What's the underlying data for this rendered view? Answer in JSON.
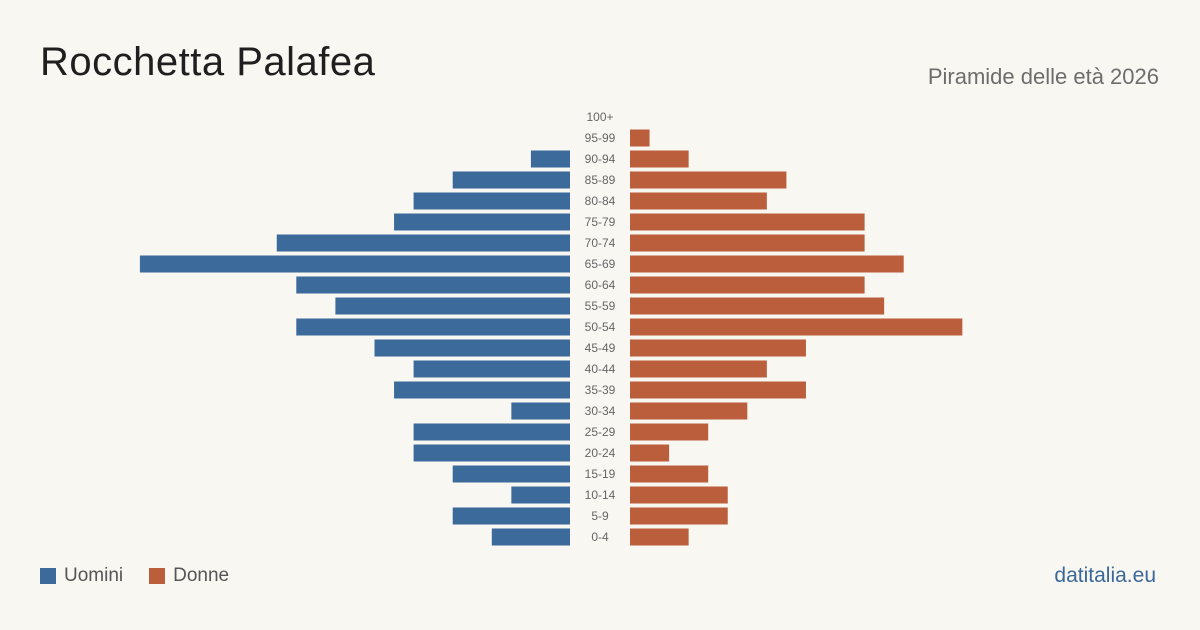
{
  "title": "Rocchetta Palafea",
  "subtitle": "Piramide delle età 2026",
  "source": "datitalia.eu",
  "colors": {
    "men": "#3c6a9b",
    "women": "#ba5e3c",
    "background": "#f9f7f2"
  },
  "legend": {
    "men_label": "Uomini",
    "women_label": "Donne"
  },
  "chart_data": {
    "type": "bar",
    "orientation": "horizontal-population-pyramid",
    "categories": [
      "100+",
      "95-99",
      "90-94",
      "85-89",
      "80-84",
      "75-79",
      "70-74",
      "65-69",
      "60-64",
      "55-59",
      "50-54",
      "45-49",
      "40-44",
      "35-39",
      "30-34",
      "25-29",
      "20-24",
      "15-19",
      "10-14",
      "5-9",
      "0-4"
    ],
    "series": [
      {
        "name": "Uomini",
        "values": [
          0,
          0,
          2,
          6,
          8,
          9,
          15,
          22,
          14,
          12,
          14,
          10,
          8,
          9,
          3,
          8,
          8,
          6,
          3,
          6,
          4
        ]
      },
      {
        "name": "Donne",
        "values": [
          0,
          1,
          3,
          8,
          7,
          12,
          12,
          14,
          12,
          13,
          17,
          9,
          7,
          9,
          6,
          4,
          2,
          4,
          5,
          5,
          3
        ]
      }
    ]
  }
}
